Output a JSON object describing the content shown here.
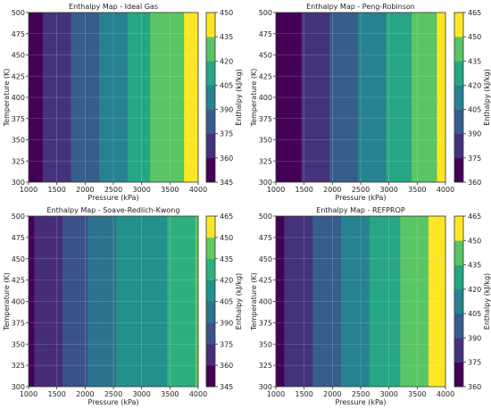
{
  "chart_data": [
    {
      "type": "heatmap",
      "title": "Enthalpy Map - Ideal Gas",
      "xlabel": "Pressure (kPa)",
      "ylabel": "Temperature (K)",
      "colorbar_label": "Enthalpy (kJ/kg)",
      "xlim": [
        1000,
        4000
      ],
      "ylim": [
        300,
        500
      ],
      "x_ticks": [
        1000,
        1500,
        2000,
        2500,
        3000,
        3500,
        4000
      ],
      "y_ticks": [
        300,
        325,
        350,
        375,
        400,
        425,
        450,
        475,
        500
      ],
      "colorbar_ticks": [
        345,
        360,
        375,
        390,
        405,
        420,
        435,
        450
      ],
      "clim": [
        345,
        450
      ],
      "x_edges": [
        1000,
        1250,
        1750,
        2250,
        2750,
        3150,
        3750,
        4000
      ],
      "values": [
        350,
        366,
        383,
        399,
        414,
        429,
        447
      ],
      "grid": true
    },
    {
      "type": "heatmap",
      "title": "Enthalpy Map - Peng-Robinson",
      "xlabel": "Pressure (kPa)",
      "ylabel": "Temperature (K)",
      "colorbar_label": "Enthalpy (kJ/kg)",
      "xlim": [
        1000,
        4000
      ],
      "ylim": [
        300,
        500
      ],
      "x_ticks": [
        1000,
        1500,
        2000,
        2500,
        3000,
        3500,
        4000
      ],
      "y_ticks": [
        300,
        325,
        350,
        375,
        400,
        425,
        450,
        475,
        500
      ],
      "colorbar_ticks": [
        360,
        375,
        390,
        405,
        420,
        435,
        450,
        465
      ],
      "clim": [
        360,
        465
      ],
      "x_edges": [
        1000,
        1450,
        1950,
        2450,
        2950,
        3400,
        3850,
        4000
      ],
      "values": [
        366,
        381,
        396,
        410,
        425,
        440,
        455
      ],
      "grid": true
    },
    {
      "type": "heatmap",
      "title": "Enthalpy Map - Soave-Redlich-Kwong",
      "xlabel": "Pressure (kPa)",
      "ylabel": "Temperature (K)",
      "colorbar_label": "Enthalpy (kJ/kg)",
      "xlim": [
        1000,
        4000
      ],
      "ylim": [
        300,
        500
      ],
      "x_ticks": [
        1000,
        1500,
        2000,
        2500,
        3000,
        3500,
        4000
      ],
      "y_ticks": [
        300,
        325,
        350,
        375,
        400,
        425,
        450,
        475,
        500
      ],
      "colorbar_ticks": [
        345,
        360,
        375,
        390,
        405,
        420,
        435,
        450,
        465
      ],
      "clim": [
        345,
        465
      ],
      "x_edges": [
        1000,
        1100,
        1600,
        2050,
        2550,
        3000,
        3450,
        3950,
        4000
      ],
      "values": [
        352,
        369,
        384,
        398,
        410,
        418,
        429,
        445
      ],
      "grid": true
    },
    {
      "type": "heatmap",
      "title": "Enthalpy Map - REFPROP",
      "xlabel": "Pressure (kPa)",
      "ylabel": "Temperature (K)",
      "colorbar_label": "Enthalpy (kJ/kg)",
      "xlim": [
        1000,
        4000
      ],
      "ylim": [
        300,
        500
      ],
      "x_ticks": [
        1000,
        1500,
        2000,
        2500,
        3000,
        3500,
        4000
      ],
      "y_ticks": [
        300,
        325,
        350,
        375,
        400,
        425,
        450,
        475,
        500
      ],
      "colorbar_ticks": [
        360,
        375,
        390,
        405,
        420,
        435,
        450,
        465
      ],
      "clim": [
        360,
        465
      ],
      "x_edges": [
        1000,
        1150,
        1650,
        2150,
        2650,
        3200,
        3700,
        4000
      ],
      "values": [
        364,
        382,
        396,
        411,
        426,
        440,
        456
      ],
      "grid": true
    }
  ]
}
